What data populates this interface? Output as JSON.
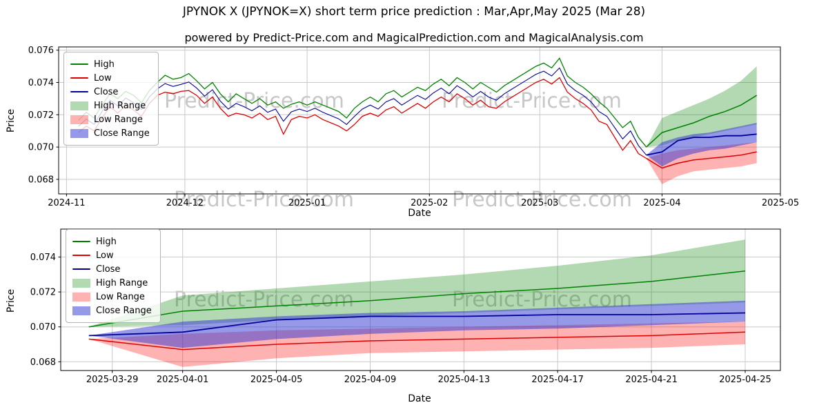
{
  "figure": {
    "title": "JPYNOK X (JPYNOK=X) short term price prediction : Mar,Apr,May 2025 (Mar 28)",
    "subtitle": "powered by Predict-Price.com and MagicalPrediction.com and MagicalAnalysis.com",
    "watermark": "Predict-Price.com",
    "xlabel": "Date",
    "ylabel": "Price"
  },
  "colors": {
    "high": "#008000",
    "low": "#dd0000",
    "close": "#000099",
    "high_range": "rgba(0,128,0,0.30)",
    "low_range": "rgba(255,0,0,0.30)",
    "close_range": "rgba(46,49,210,0.50)",
    "grid": "#c8c8c8",
    "frame": "#000000"
  },
  "legend": {
    "items": [
      {
        "label": "High",
        "swatch": "line",
        "color_key": "high"
      },
      {
        "label": "Low",
        "swatch": "line",
        "color_key": "low"
      },
      {
        "label": "Close",
        "swatch": "line",
        "color_key": "close"
      },
      {
        "label": "High Range",
        "swatch": "patch",
        "color_key": "high_range"
      },
      {
        "label": "Low Range",
        "swatch": "patch",
        "color_key": "low_range"
      },
      {
        "label": "Close Range",
        "swatch": "patch",
        "color_key": "close_range"
      }
    ]
  },
  "chart_data": [
    {
      "type": "line",
      "title": "JPYNOK X (JPYNOK=X) short term price prediction : Mar,Apr,May 2025 (Mar 28)",
      "subtitle": "powered by Predict-Price.com and MagicalPrediction.com and MagicalAnalysis.com",
      "xlabel": "Date",
      "ylabel": "Price",
      "x_unit": "days since 2024-11-01",
      "xlim_days": [
        -2,
        181
      ],
      "ylim": [
        0.0671,
        0.0762
      ],
      "x_ticks": [
        {
          "day": 0,
          "label": "2024-11"
        },
        {
          "day": 30,
          "label": "2024-12"
        },
        {
          "day": 61,
          "label": "2025-01"
        },
        {
          "day": 92,
          "label": "2025-02"
        },
        {
          "day": 120,
          "label": "2025-03"
        },
        {
          "day": 151,
          "label": "2025-04"
        },
        {
          "day": 181,
          "label": "2025-05"
        }
      ],
      "y_ticks": [
        {
          "value": 0.068,
          "label": "0.068"
        },
        {
          "value": 0.07,
          "label": "0.070"
        },
        {
          "value": 0.072,
          "label": "0.072"
        },
        {
          "value": 0.074,
          "label": "0.074"
        },
        {
          "value": 0.076,
          "label": "0.076"
        }
      ],
      "history": {
        "days": [
          3,
          5,
          7,
          9,
          11,
          13,
          15,
          17,
          19,
          21,
          23,
          25,
          27,
          29,
          31,
          33,
          35,
          37,
          39,
          41,
          43,
          45,
          47,
          49,
          51,
          53,
          55,
          57,
          59,
          61,
          63,
          65,
          67,
          69,
          71,
          73,
          75,
          77,
          79,
          81,
          83,
          85,
          87,
          89,
          91,
          93,
          95,
          97,
          99,
          101,
          103,
          105,
          107,
          109,
          111,
          113,
          115,
          117,
          119,
          121,
          123,
          125,
          127,
          129,
          131,
          133,
          135,
          137,
          139,
          141,
          143,
          145,
          147
        ],
        "high": [
          0.07165,
          0.07215,
          0.0718,
          0.0726,
          0.0733,
          0.073,
          0.07345,
          0.0732,
          0.07275,
          0.0735,
          0.074,
          0.07445,
          0.0742,
          0.0743,
          0.07455,
          0.0741,
          0.0736,
          0.074,
          0.0733,
          0.0728,
          0.0733,
          0.073,
          0.0727,
          0.073,
          0.0726,
          0.0728,
          0.0724,
          0.07265,
          0.0728,
          0.0726,
          0.0728,
          0.0726,
          0.0724,
          0.0722,
          0.0718,
          0.0724,
          0.0728,
          0.0731,
          0.0728,
          0.0733,
          0.0735,
          0.0731,
          0.0734,
          0.0737,
          0.0735,
          0.0739,
          0.0742,
          0.0738,
          0.0743,
          0.074,
          0.0736,
          0.074,
          0.0737,
          0.0734,
          0.0738,
          0.0741,
          0.0744,
          0.0747,
          0.075,
          0.0752,
          0.0749,
          0.0755,
          0.0744,
          0.074,
          0.0737,
          0.0733,
          0.0728,
          0.0724,
          0.0718,
          0.0712,
          0.0716,
          0.0706,
          0.07
        ],
        "low": [
          0.0709,
          0.0713,
          0.071,
          0.0718,
          0.0725,
          0.0721,
          0.0726,
          0.0723,
          0.0719,
          0.0727,
          0.0732,
          0.0734,
          0.0733,
          0.07345,
          0.0735,
          0.0732,
          0.0727,
          0.0731,
          0.0724,
          0.0719,
          0.0721,
          0.072,
          0.0718,
          0.0721,
          0.0717,
          0.0719,
          0.0708,
          0.0717,
          0.0719,
          0.0718,
          0.072,
          0.0717,
          0.0715,
          0.0713,
          0.071,
          0.0714,
          0.0719,
          0.0721,
          0.0719,
          0.0723,
          0.0725,
          0.0721,
          0.0724,
          0.0727,
          0.0724,
          0.0728,
          0.0731,
          0.0728,
          0.0733,
          0.073,
          0.0726,
          0.0729,
          0.0725,
          0.0724,
          0.0728,
          0.0731,
          0.0734,
          0.0737,
          0.074,
          0.0742,
          0.0739,
          0.0743,
          0.0734,
          0.073,
          0.0727,
          0.0723,
          0.0716,
          0.0714,
          0.0706,
          0.0698,
          0.0704,
          0.0696,
          0.0693
        ],
        "close": [
          0.07128,
          0.07173,
          0.0714,
          0.0722,
          0.0729,
          0.07255,
          0.07303,
          0.07275,
          0.07233,
          0.0731,
          0.0736,
          0.07393,
          0.07375,
          0.07388,
          0.07403,
          0.07365,
          0.07315,
          0.07355,
          0.07285,
          0.07235,
          0.0727,
          0.0725,
          0.07225,
          0.07255,
          0.07215,
          0.07235,
          0.0716,
          0.07218,
          0.07235,
          0.0722,
          0.0724,
          0.07215,
          0.07195,
          0.07175,
          0.0714,
          0.0719,
          0.07235,
          0.0726,
          0.07235,
          0.0728,
          0.073,
          0.0726,
          0.0729,
          0.0732,
          0.07295,
          0.07335,
          0.07365,
          0.0733,
          0.0738,
          0.0735,
          0.0731,
          0.07345,
          0.0731,
          0.0729,
          0.0733,
          0.0736,
          0.0739,
          0.0742,
          0.0745,
          0.0747,
          0.0744,
          0.0749,
          0.0739,
          0.0735,
          0.0732,
          0.0728,
          0.0722,
          0.0719,
          0.0712,
          0.0705,
          0.071,
          0.0701,
          0.0695
        ]
      },
      "forecast": {
        "days": [
          147,
          151,
          155,
          159,
          163,
          167,
          171,
          175
        ],
        "high": [
          0.07,
          0.0709,
          0.0712,
          0.0715,
          0.0719,
          0.0722,
          0.0726,
          0.0732
        ],
        "low": [
          0.0693,
          0.0687,
          0.069,
          0.0692,
          0.0693,
          0.0694,
          0.0695,
          0.0697
        ],
        "close": [
          0.0695,
          0.0697,
          0.0704,
          0.0706,
          0.0706,
          0.0707,
          0.0707,
          0.0708
        ],
        "high_upper": [
          0.07,
          0.0718,
          0.0722,
          0.0726,
          0.073,
          0.0735,
          0.0741,
          0.075
        ],
        "high_lower": [
          0.07,
          0.0701,
          0.0704,
          0.0706,
          0.0708,
          0.071,
          0.0712,
          0.0714
        ],
        "low_upper": [
          0.0693,
          0.0696,
          0.0698,
          0.0699,
          0.07,
          0.0701,
          0.0702,
          0.0703
        ],
        "low_lower": [
          0.0693,
          0.0677,
          0.0682,
          0.0685,
          0.0686,
          0.0687,
          0.0688,
          0.069
        ],
        "close_upper": [
          0.0695,
          0.0703,
          0.0706,
          0.0708,
          0.0709,
          0.0711,
          0.0713,
          0.0715
        ],
        "close_lower": [
          0.0695,
          0.0688,
          0.0693,
          0.0696,
          0.0698,
          0.0699,
          0.0701,
          0.0703
        ]
      }
    },
    {
      "type": "line",
      "title": "",
      "xlabel": "Date",
      "ylabel": "Price",
      "x_unit": "days since 2024-11-01",
      "xlim_days": [
        145.8,
        176.5
      ],
      "ylim": [
        0.0675,
        0.0756
      ],
      "x_ticks": [
        {
          "day": 148,
          "label": "2025-03-29"
        },
        {
          "day": 151,
          "label": "2025-04-01"
        },
        {
          "day": 155,
          "label": "2025-04-05"
        },
        {
          "day": 159,
          "label": "2025-04-09"
        },
        {
          "day": 163,
          "label": "2025-04-13"
        },
        {
          "day": 167,
          "label": "2025-04-17"
        },
        {
          "day": 171,
          "label": "2025-04-21"
        },
        {
          "day": 175,
          "label": "2025-04-25"
        }
      ],
      "y_ticks": [
        {
          "value": 0.068,
          "label": "0.068"
        },
        {
          "value": 0.07,
          "label": "0.070"
        },
        {
          "value": 0.072,
          "label": "0.072"
        },
        {
          "value": 0.074,
          "label": "0.074"
        }
      ],
      "forecast": {
        "days": [
          147,
          151,
          155,
          159,
          163,
          167,
          171,
          175
        ],
        "high": [
          0.07,
          0.0709,
          0.0712,
          0.0715,
          0.0719,
          0.0722,
          0.0726,
          0.0732
        ],
        "low": [
          0.0693,
          0.0687,
          0.069,
          0.0692,
          0.0693,
          0.0694,
          0.0695,
          0.0697
        ],
        "close": [
          0.0695,
          0.0697,
          0.0704,
          0.0706,
          0.0706,
          0.0707,
          0.0707,
          0.0708
        ],
        "high_upper": [
          0.07,
          0.0718,
          0.0722,
          0.0726,
          0.073,
          0.0735,
          0.0741,
          0.075
        ],
        "high_lower": [
          0.07,
          0.0701,
          0.0704,
          0.0706,
          0.0708,
          0.071,
          0.0712,
          0.0714
        ],
        "low_upper": [
          0.0693,
          0.0696,
          0.0698,
          0.0699,
          0.07,
          0.0701,
          0.0702,
          0.0703
        ],
        "low_lower": [
          0.0693,
          0.0677,
          0.0682,
          0.0685,
          0.0686,
          0.0687,
          0.0688,
          0.069
        ],
        "close_upper": [
          0.0695,
          0.0703,
          0.0706,
          0.0708,
          0.0709,
          0.0711,
          0.0713,
          0.0715
        ],
        "close_lower": [
          0.0695,
          0.0688,
          0.0693,
          0.0696,
          0.0698,
          0.0699,
          0.0701,
          0.0703
        ]
      }
    }
  ]
}
